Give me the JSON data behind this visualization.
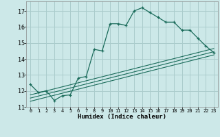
{
  "xlabel": "Humidex (Indice chaleur)",
  "bg_color": "#cce8e8",
  "grid_color": "#aacccc",
  "line_color": "#1a6b5a",
  "xlim": [
    -0.5,
    23.5
  ],
  "ylim": [
    11,
    17.6
  ],
  "yticks": [
    11,
    12,
    13,
    14,
    15,
    16,
    17
  ],
  "xticks": [
    0,
    1,
    2,
    3,
    4,
    5,
    6,
    7,
    8,
    9,
    10,
    11,
    12,
    13,
    14,
    15,
    16,
    17,
    18,
    19,
    20,
    21,
    22,
    23
  ],
  "series1_x": [
    0,
    1,
    2,
    3,
    4,
    5,
    6,
    7,
    8,
    9,
    10,
    11,
    12,
    13,
    14,
    15,
    16,
    17,
    18,
    19,
    20,
    21,
    22,
    23
  ],
  "series1_y": [
    12.4,
    11.9,
    12.0,
    11.4,
    11.7,
    11.75,
    12.8,
    12.9,
    14.6,
    14.5,
    16.2,
    16.2,
    16.1,
    17.0,
    17.2,
    16.9,
    16.6,
    16.3,
    16.3,
    15.8,
    15.8,
    15.3,
    14.8,
    14.4
  ],
  "series2_x": [
    0,
    23
  ],
  "series2_y": [
    11.35,
    14.25
  ],
  "series3_x": [
    0,
    23
  ],
  "series3_y": [
    11.55,
    14.45
  ],
  "series4_x": [
    0,
    23
  ],
  "series4_y": [
    11.75,
    14.65
  ]
}
